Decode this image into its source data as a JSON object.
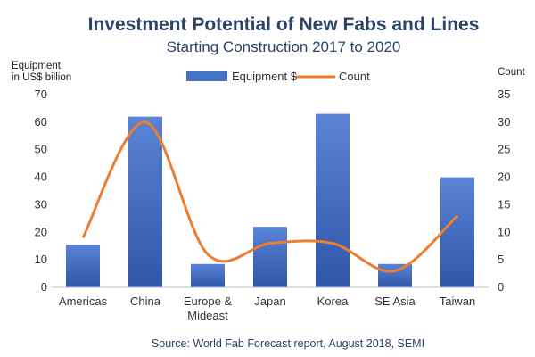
{
  "chart_data": {
    "type": "bar",
    "title": "Investment Potential of New Fabs and Lines",
    "subtitle": "Starting Construction  2017 to 2020",
    "categories": [
      "Americas",
      "China",
      "Europe & Mideast",
      "Japan",
      "Korea",
      "SE Asia",
      "Taiwan"
    ],
    "category_lines": [
      [
        "Americas"
      ],
      [
        "China"
      ],
      [
        "Europe &",
        "Mideast"
      ],
      [
        "Japan"
      ],
      [
        "Korea"
      ],
      [
        "SE Asia"
      ],
      [
        "Taiwan"
      ]
    ],
    "series": [
      {
        "name": "Equipment $",
        "type": "bar",
        "axis": "left",
        "color": "#4472c4",
        "values": [
          15.5,
          62,
          8.5,
          22,
          63,
          8.5,
          40
        ]
      },
      {
        "name": "Count",
        "type": "line",
        "axis": "right",
        "color": "#ed7d31",
        "values": [
          9,
          30,
          6,
          8,
          8,
          3,
          13
        ]
      }
    ],
    "ylabel_left_lines": [
      "Equipment",
      "in US$ billion"
    ],
    "ylabel_right": "Count",
    "ylim_left": [
      0,
      70
    ],
    "ylim_right": [
      0,
      35
    ],
    "yticks_left": [
      0,
      10,
      20,
      30,
      40,
      50,
      60,
      70
    ],
    "yticks_right": [
      0,
      5,
      10,
      15,
      20,
      25,
      30,
      35
    ],
    "grid": false,
    "legend": "top-center",
    "source": "Source: World Fab Forecast report, August 2018, SEMI"
  }
}
